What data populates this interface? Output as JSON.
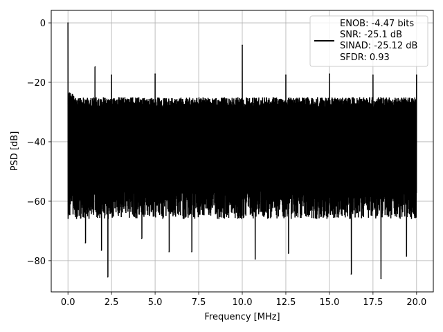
{
  "chart_data": {
    "type": "line",
    "xlabel": "Frequency [MHz]",
    "ylabel": "PSD [dB]",
    "xlim": [
      -0.96,
      20.96
    ],
    "ylim": [
      -90.5,
      4.2
    ],
    "xticks": [
      0.0,
      2.5,
      5.0,
      7.5,
      10.0,
      12.5,
      15.0,
      17.5,
      20.0
    ],
    "xtick_labels": [
      "0.0",
      "2.5",
      "5.0",
      "7.5",
      "10.0",
      "12.5",
      "15.0",
      "17.5",
      "20.0"
    ],
    "yticks": [
      0,
      -20,
      -40,
      -60,
      -80
    ],
    "ytick_labels": [
      "0",
      "−20",
      "−40",
      "−60",
      "−80"
    ],
    "grid": true,
    "legend_position": "upper-right",
    "series": [
      {
        "name": "ENOB: -4.47 bits\nSNR: -25.1 dB\nSINAD: -25.12 dB\nSFDR: 0.93",
        "legend_lines": [
          "ENOB: -4.47 bits",
          "SNR: -25.1 dB",
          "SINAD: -25.12 dB",
          "SFDR: 0.93"
        ],
        "color": "#000000",
        "noise_band": {
          "x_start": 0.0,
          "x_end": 20.0,
          "upper_envelope": -23,
          "lower_envelope": -68
        },
        "peaks": [
          {
            "x": 0.0,
            "y": 0.0
          },
          {
            "x": 1.56,
            "y": -14.8
          },
          {
            "x": 2.5,
            "y": -17.5
          },
          {
            "x": 5.0,
            "y": -17.2
          },
          {
            "x": 10.0,
            "y": -7.5
          },
          {
            "x": 12.5,
            "y": -17.5
          },
          {
            "x": 15.0,
            "y": -17.2
          },
          {
            "x": 17.5,
            "y": -17.5
          },
          {
            "x": 20.0,
            "y": -17.5
          }
        ],
        "dips": [
          {
            "x": 1.0,
            "y": -74.0
          },
          {
            "x": 1.92,
            "y": -76.5
          },
          {
            "x": 2.28,
            "y": -85.5
          },
          {
            "x": 4.23,
            "y": -72.5
          },
          {
            "x": 5.8,
            "y": -77.0
          },
          {
            "x": 7.1,
            "y": -77.0
          },
          {
            "x": 10.74,
            "y": -79.5
          },
          {
            "x": 12.65,
            "y": -77.5
          },
          {
            "x": 16.25,
            "y": -84.5
          },
          {
            "x": 17.96,
            "y": -86.0
          },
          {
            "x": 19.42,
            "y": -78.5
          }
        ]
      }
    ]
  }
}
